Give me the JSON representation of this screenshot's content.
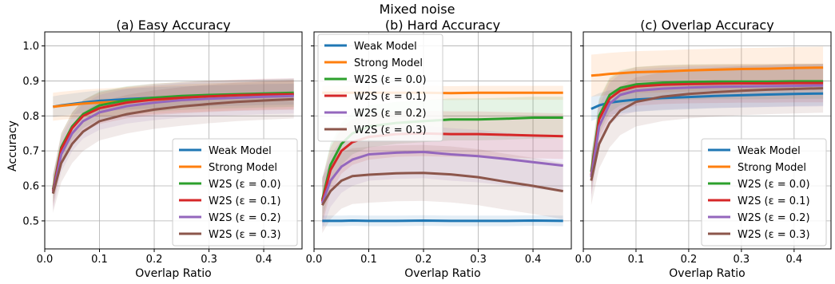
{
  "suptitle": "Mixed noise",
  "shared_ylabel": "Accuracy",
  "colors": {
    "weak": "#1f77b4",
    "strong": "#ff7f0e",
    "w2s_0": "#2ca02c",
    "w2s_1": "#d62728",
    "w2s_2": "#9467bd",
    "w2s_3": "#8c564b"
  },
  "chart_data": [
    {
      "type": "line",
      "title": "(a) Easy Accuracy",
      "xlabel": "Overlap Ratio",
      "ylabel": "Accuracy",
      "xlim": [
        0.0,
        0.47
      ],
      "ylim": [
        0.42,
        1.04
      ],
      "xticks": [
        "0.0",
        "0.1",
        "0.2",
        "0.3",
        "0.4"
      ],
      "yticks": [
        "0.5",
        "0.6",
        "0.7",
        "0.8",
        "0.9",
        "1.0"
      ],
      "grid": true,
      "legend_position": "lower-right",
      "x": [
        0.015,
        0.03,
        0.05,
        0.07,
        0.1,
        0.15,
        0.2,
        0.25,
        0.3,
        0.35,
        0.4,
        0.455
      ],
      "series": [
        {
          "name": "Weak Model",
          "color_key": "weak",
          "values": [
            0.826,
            0.83,
            0.834,
            0.838,
            0.843,
            0.848,
            0.852,
            0.855,
            0.857,
            0.859,
            0.861,
            0.862
          ],
          "band": 0.03
        },
        {
          "name": "Strong Model",
          "color_key": "strong",
          "values": [
            0.826,
            0.829,
            0.832,
            0.835,
            0.838,
            0.842,
            0.846,
            0.85,
            0.853,
            0.856,
            0.858,
            0.86
          ],
          "band": 0.04
        },
        {
          "name": "W2S (ε = 0.0)",
          "color_key": "w2s_0",
          "values": [
            0.59,
            0.71,
            0.77,
            0.805,
            0.83,
            0.845,
            0.852,
            0.857,
            0.86,
            0.862,
            0.864,
            0.866
          ],
          "band": 0.04
        },
        {
          "name": "W2S (ε = 0.1)",
          "color_key": "w2s_1",
          "values": [
            0.585,
            0.705,
            0.765,
            0.8,
            0.822,
            0.838,
            0.847,
            0.852,
            0.856,
            0.859,
            0.861,
            0.862
          ],
          "band": 0.045
        },
        {
          "name": "W2S (ε = 0.2)",
          "color_key": "w2s_2",
          "values": [
            0.58,
            0.69,
            0.75,
            0.785,
            0.81,
            0.828,
            0.838,
            0.845,
            0.849,
            0.852,
            0.855,
            0.857
          ],
          "band": 0.05
        },
        {
          "name": "W2S (ε = 0.3)",
          "color_key": "w2s_3",
          "values": [
            0.578,
            0.665,
            0.72,
            0.755,
            0.785,
            0.805,
            0.818,
            0.827,
            0.834,
            0.84,
            0.844,
            0.848
          ],
          "band": 0.055
        }
      ]
    },
    {
      "type": "line",
      "title": "(b) Hard Accuracy",
      "xlabel": "Overlap Ratio",
      "ylabel": "",
      "xlim": [
        0.0,
        0.47
      ],
      "ylim": [
        0.42,
        1.04
      ],
      "xticks": [
        "0.0",
        "0.1",
        "0.2",
        "0.3",
        "0.4"
      ],
      "yticks": [],
      "grid": true,
      "legend_position": "upper-left",
      "x": [
        0.015,
        0.03,
        0.05,
        0.07,
        0.1,
        0.15,
        0.2,
        0.25,
        0.3,
        0.35,
        0.4,
        0.455
      ],
      "series": [
        {
          "name": "Weak Model",
          "color_key": "weak",
          "values": [
            0.5,
            0.5,
            0.5,
            0.501,
            0.5,
            0.5,
            0.501,
            0.5,
            0.5,
            0.5,
            0.501,
            0.5
          ],
          "band": 0.015
        },
        {
          "name": "Strong Model",
          "color_key": "strong",
          "values": [
            0.866,
            0.866,
            0.866,
            0.866,
            0.866,
            0.866,
            0.866,
            0.865,
            0.866,
            0.866,
            0.866,
            0.866
          ],
          "band": 0.02
        },
        {
          "name": "W2S (ε = 0.0)",
          "color_key": "w2s_0",
          "values": [
            0.56,
            0.66,
            0.72,
            0.75,
            0.77,
            0.78,
            0.785,
            0.79,
            0.79,
            0.792,
            0.795,
            0.795
          ],
          "band": 0.06
        },
        {
          "name": "W2S (ε = 0.1)",
          "color_key": "w2s_1",
          "values": [
            0.555,
            0.645,
            0.7,
            0.725,
            0.74,
            0.748,
            0.75,
            0.748,
            0.748,
            0.746,
            0.744,
            0.742
          ],
          "band": 0.065
        },
        {
          "name": "W2S (ε = 0.2)",
          "color_key": "w2s_2",
          "values": [
            0.55,
            0.615,
            0.655,
            0.675,
            0.69,
            0.695,
            0.697,
            0.69,
            0.685,
            0.677,
            0.668,
            0.658
          ],
          "band": 0.075
        },
        {
          "name": "W2S (ε = 0.3)",
          "color_key": "w2s_3",
          "values": [
            0.545,
            0.585,
            0.615,
            0.628,
            0.632,
            0.636,
            0.637,
            0.633,
            0.625,
            0.612,
            0.6,
            0.585
          ],
          "band": 0.08
        }
      ]
    },
    {
      "type": "line",
      "title": "(c) Overlap Accuracy",
      "xlabel": "Overlap Ratio",
      "ylabel": "",
      "xlim": [
        0.0,
        0.47
      ],
      "ylim": [
        0.42,
        1.04
      ],
      "xticks": [
        "0.0",
        "0.1",
        "0.2",
        "0.3",
        "0.4"
      ],
      "yticks": [],
      "grid": true,
      "legend_position": "lower-right",
      "x": [
        0.015,
        0.03,
        0.05,
        0.07,
        0.1,
        0.15,
        0.2,
        0.25,
        0.3,
        0.35,
        0.4,
        0.455
      ],
      "series": [
        {
          "name": "Weak Model",
          "color_key": "weak",
          "values": [
            0.82,
            0.83,
            0.838,
            0.842,
            0.847,
            0.851,
            0.854,
            0.857,
            0.859,
            0.861,
            0.863,
            0.864
          ],
          "band": 0.035
        },
        {
          "name": "Strong Model",
          "color_key": "strong",
          "values": [
            0.915,
            0.917,
            0.92,
            0.922,
            0.925,
            0.927,
            0.93,
            0.932,
            0.934,
            0.935,
            0.937,
            0.938
          ],
          "band": 0.06
        },
        {
          "name": "W2S (ε = 0.0)",
          "color_key": "w2s_0",
          "values": [
            0.64,
            0.8,
            0.86,
            0.88,
            0.89,
            0.895,
            0.897,
            0.898,
            0.898,
            0.898,
            0.899,
            0.899
          ],
          "band": 0.05
        },
        {
          "name": "W2S (ε = 0.1)",
          "color_key": "w2s_1",
          "values": [
            0.63,
            0.79,
            0.85,
            0.872,
            0.884,
            0.889,
            0.891,
            0.892,
            0.893,
            0.893,
            0.894,
            0.894
          ],
          "band": 0.055
        },
        {
          "name": "W2S (ε = 0.2)",
          "color_key": "w2s_2",
          "values": [
            0.625,
            0.77,
            0.835,
            0.86,
            0.872,
            0.878,
            0.881,
            0.883,
            0.884,
            0.885,
            0.886,
            0.887
          ],
          "band": 0.06
        },
        {
          "name": "W2S (ε = 0.3)",
          "color_key": "w2s_3",
          "values": [
            0.615,
            0.72,
            0.78,
            0.815,
            0.84,
            0.855,
            0.863,
            0.868,
            0.872,
            0.875,
            0.877,
            0.879
          ],
          "band": 0.07
        }
      ]
    }
  ]
}
